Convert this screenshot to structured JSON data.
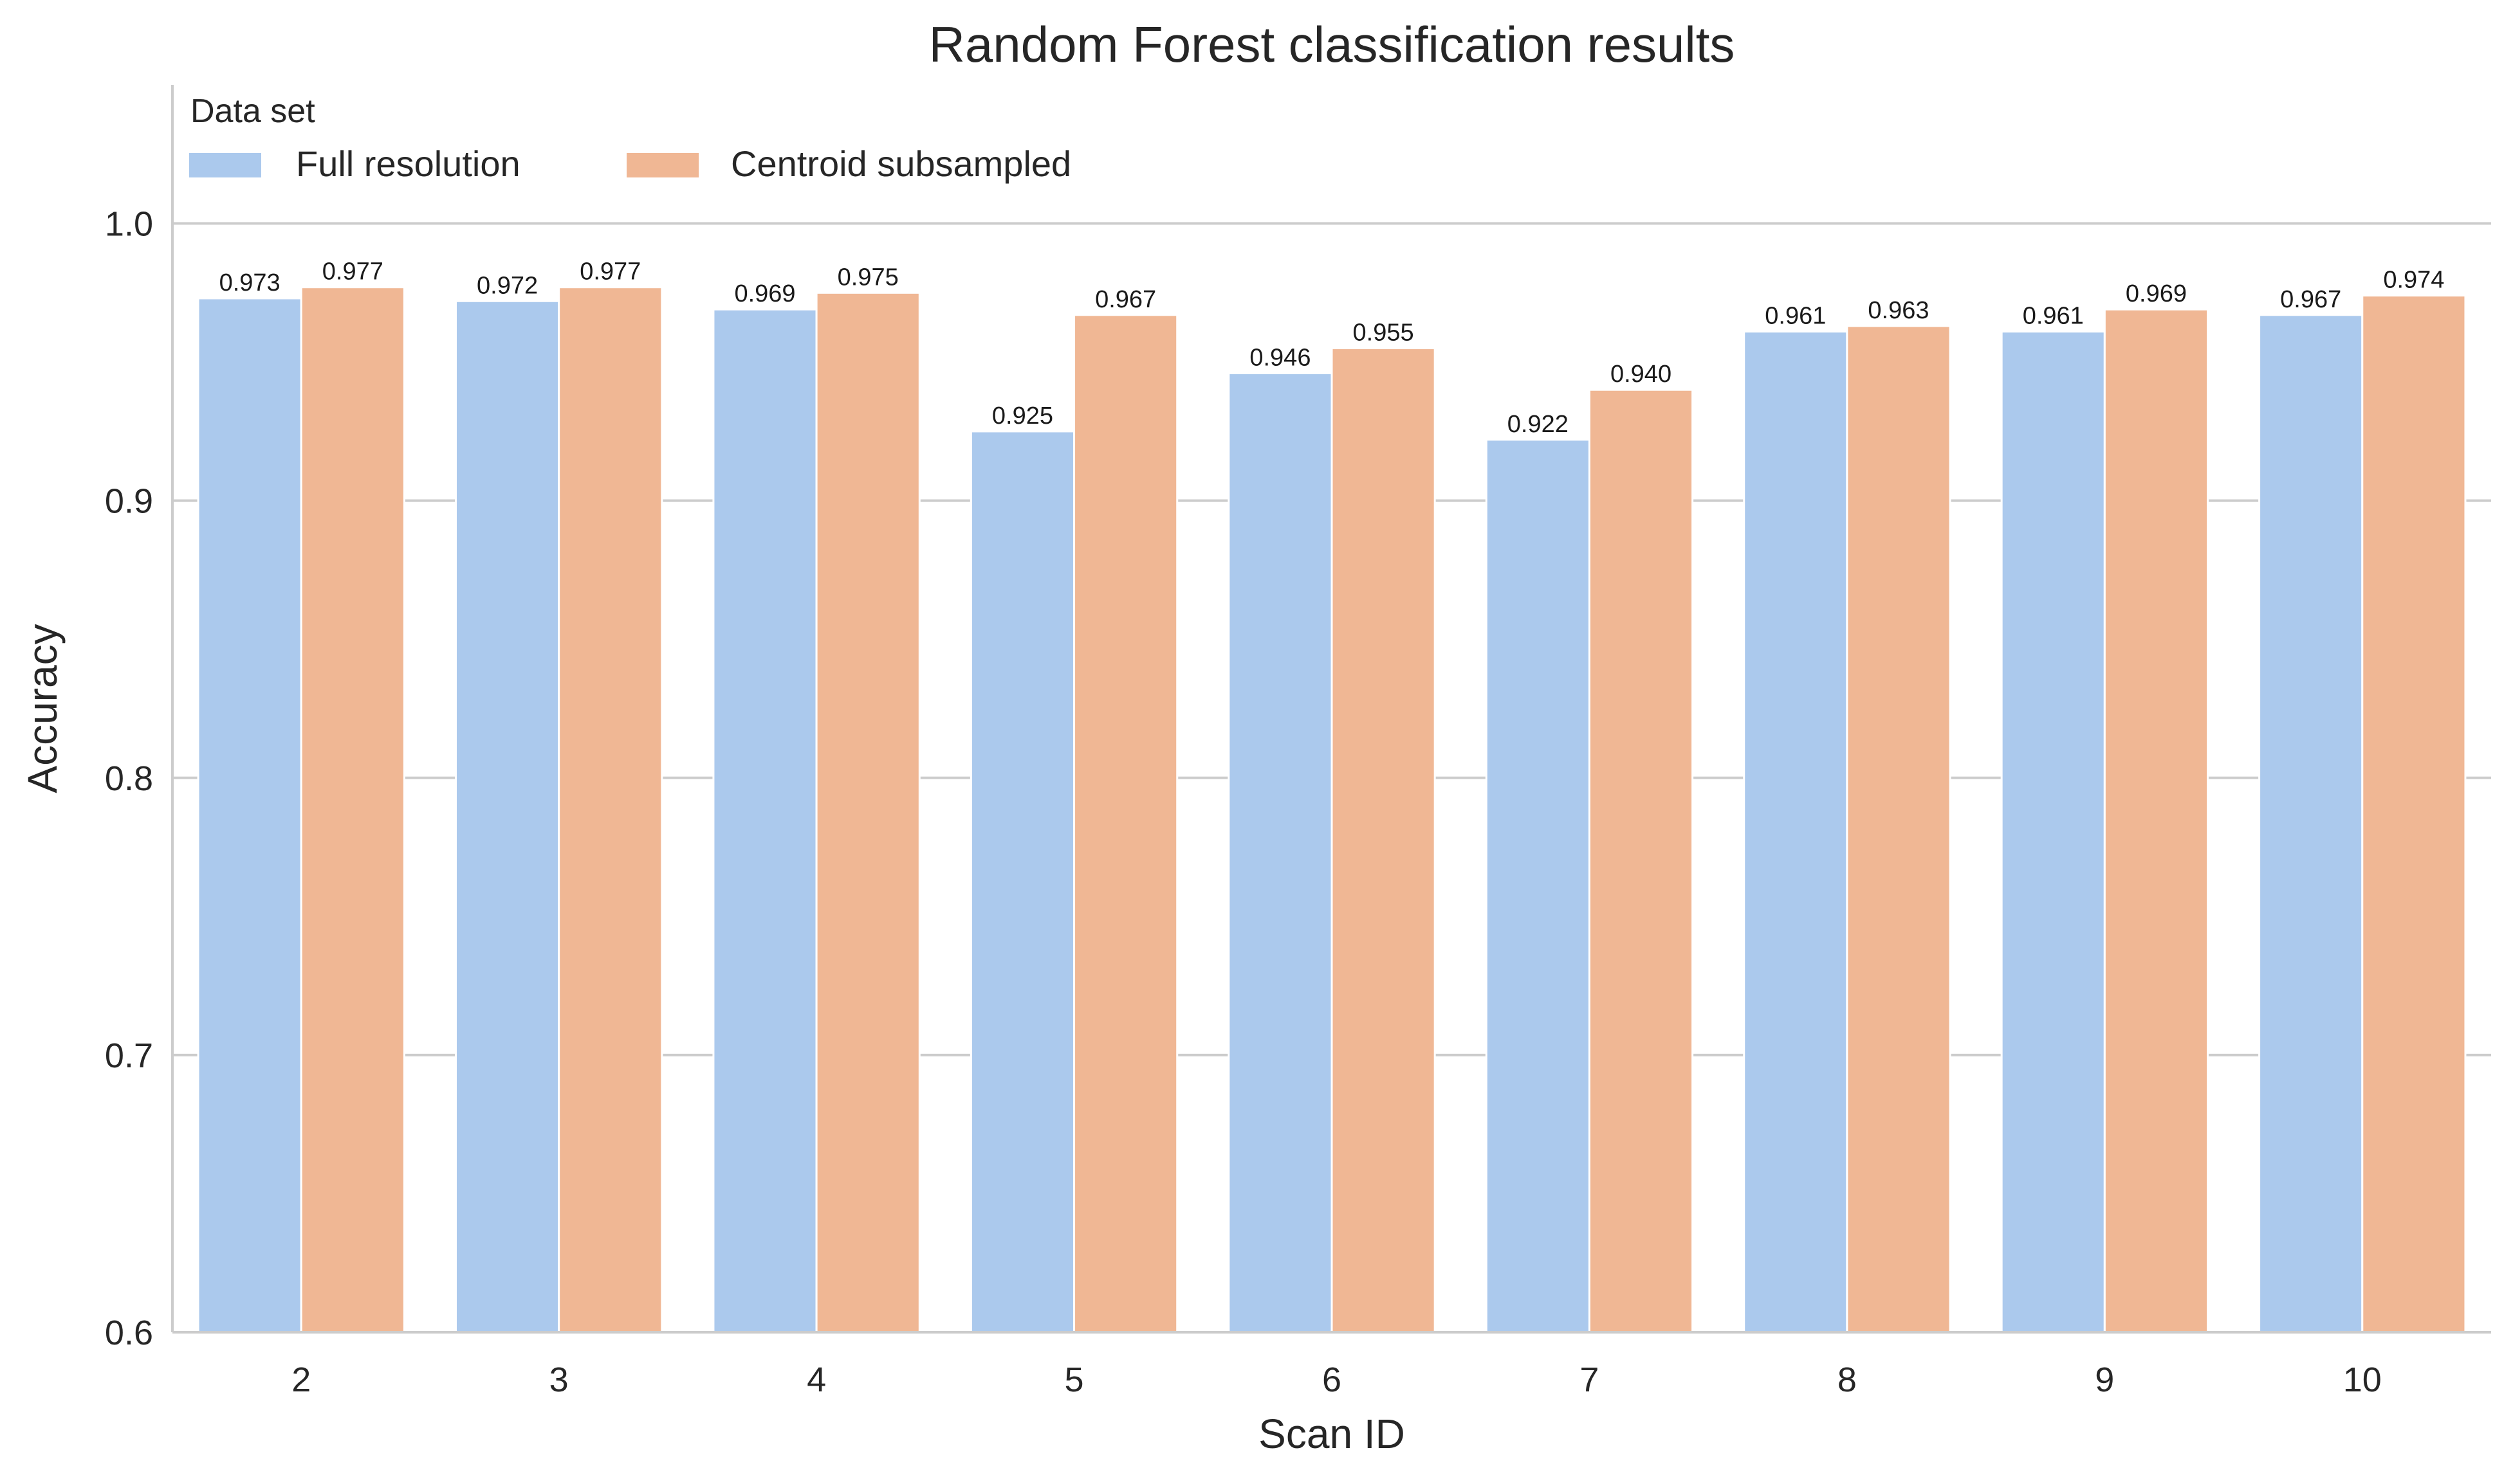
{
  "chart_data": {
    "type": "bar",
    "title": "Random Forest classification results",
    "xlabel": "Scan ID",
    "ylabel": "Accuracy",
    "ylim": [
      0.6,
      1.05
    ],
    "yticks": [
      0.6,
      0.7,
      0.8,
      0.9,
      1.0
    ],
    "ytick_labels": [
      "0.6",
      "0.7",
      "0.8",
      "0.9",
      "1.0"
    ],
    "grid": "horizontal",
    "categories": [
      "2",
      "3",
      "4",
      "5",
      "6",
      "7",
      "8",
      "9",
      "10"
    ],
    "series": [
      {
        "name": "Full resolution",
        "color": "#abc9ed",
        "values": [
          0.973,
          0.972,
          0.969,
          0.925,
          0.946,
          0.922,
          0.961,
          0.961,
          0.967
        ],
        "labels": [
          "0.973",
          "0.972",
          "0.969",
          "0.925",
          "0.946",
          "0.922",
          "0.961",
          "0.961",
          "0.967"
        ]
      },
      {
        "name": "Centroid subsampled",
        "color": "#f0b794",
        "values": [
          0.977,
          0.977,
          0.975,
          0.967,
          0.955,
          0.94,
          0.963,
          0.969,
          0.974
        ],
        "labels": [
          "0.977",
          "0.977",
          "0.975",
          "0.967",
          "0.955",
          "0.940",
          "0.963",
          "0.969",
          "0.974"
        ]
      }
    ],
    "legend": {
      "title": "Data set",
      "placement": "top-left"
    }
  }
}
